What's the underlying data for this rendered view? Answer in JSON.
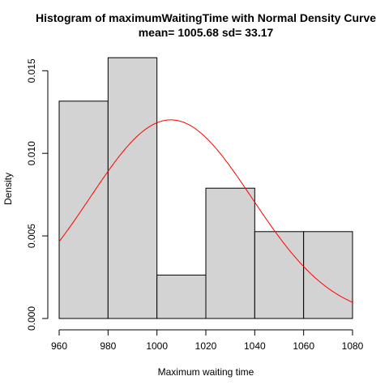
{
  "chart_data": {
    "type": "bar",
    "title": "Histogram of maximumWaitingTime with Normal Density Curve",
    "subtitle": "mean= 1005.68 sd= 33.17",
    "xlabel": "Maximum waiting time",
    "ylabel": "Density",
    "xlim": [
      960,
      1080
    ],
    "ylim": [
      0,
      0.0158
    ],
    "x_ticks": [
      "960",
      "980",
      "1000",
      "1020",
      "1040",
      "1060",
      "1080"
    ],
    "y_ticks": [
      "0.000",
      "0.005",
      "0.010",
      "0.015"
    ],
    "bins": [
      {
        "start": 960,
        "end": 980,
        "density": 0.01316
      },
      {
        "start": 980,
        "end": 1000,
        "density": 0.01579
      },
      {
        "start": 1000,
        "end": 1020,
        "density": 0.00263
      },
      {
        "start": 1020,
        "end": 1040,
        "density": 0.00789
      },
      {
        "start": 1040,
        "end": 1060,
        "density": 0.00526
      },
      {
        "start": 1060,
        "end": 1080,
        "density": 0.00526
      }
    ],
    "curve": {
      "type": "normal-density",
      "mean": 1005.68,
      "sd": 33.17
    },
    "colors": {
      "bar_fill": "#d3d3d3",
      "bar_stroke": "#000000",
      "curve": "#ff0000"
    }
  }
}
